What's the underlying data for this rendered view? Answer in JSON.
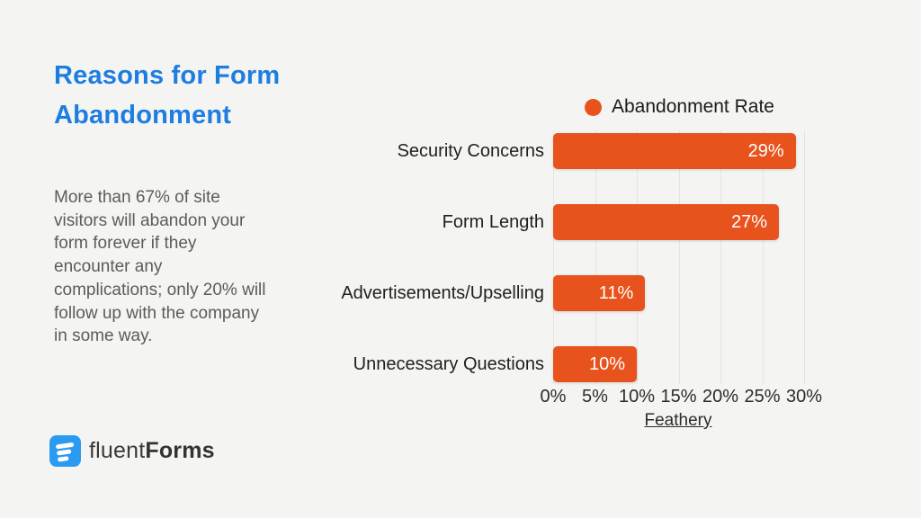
{
  "slide": {
    "background_color": "#f4f4f2",
    "title": "Reasons for Form Abandonment",
    "title_color": "#1d7de1",
    "body_text": "More than 67% of site visitors will abandon your form forever if they encounter any complications; only 20% will follow up with the company in some way.",
    "logo": {
      "icon_name": "fluent-forms-icon",
      "icon_color": "#2b9bf1",
      "text_regular": "fluent",
      "text_bold": "Forms"
    }
  },
  "chart_data": {
    "type": "bar",
    "orientation": "horizontal",
    "title": "",
    "legend": {
      "label": "Abandonment Rate",
      "marker_color": "#e8531d",
      "position": "top-right"
    },
    "categories": [
      "Security Concerns",
      "Form Length",
      "Advertisements/Upselling",
      "Unnecessary Questions"
    ],
    "values": [
      29,
      27,
      11,
      10
    ],
    "value_labels": [
      "29%",
      "27%",
      "11%",
      "10%"
    ],
    "bar_color": "#e8531d",
    "value_label_color": "#ffffff",
    "x_ticks": [
      "0%",
      "5%",
      "10%",
      "15%",
      "20%",
      "25%",
      "30%"
    ],
    "x_tick_values": [
      0,
      5,
      10,
      15,
      20,
      25,
      30
    ],
    "xlim": [
      0,
      30
    ],
    "grid": true,
    "gridline_color": "#e4e4e1",
    "source_label": "Feathery"
  }
}
